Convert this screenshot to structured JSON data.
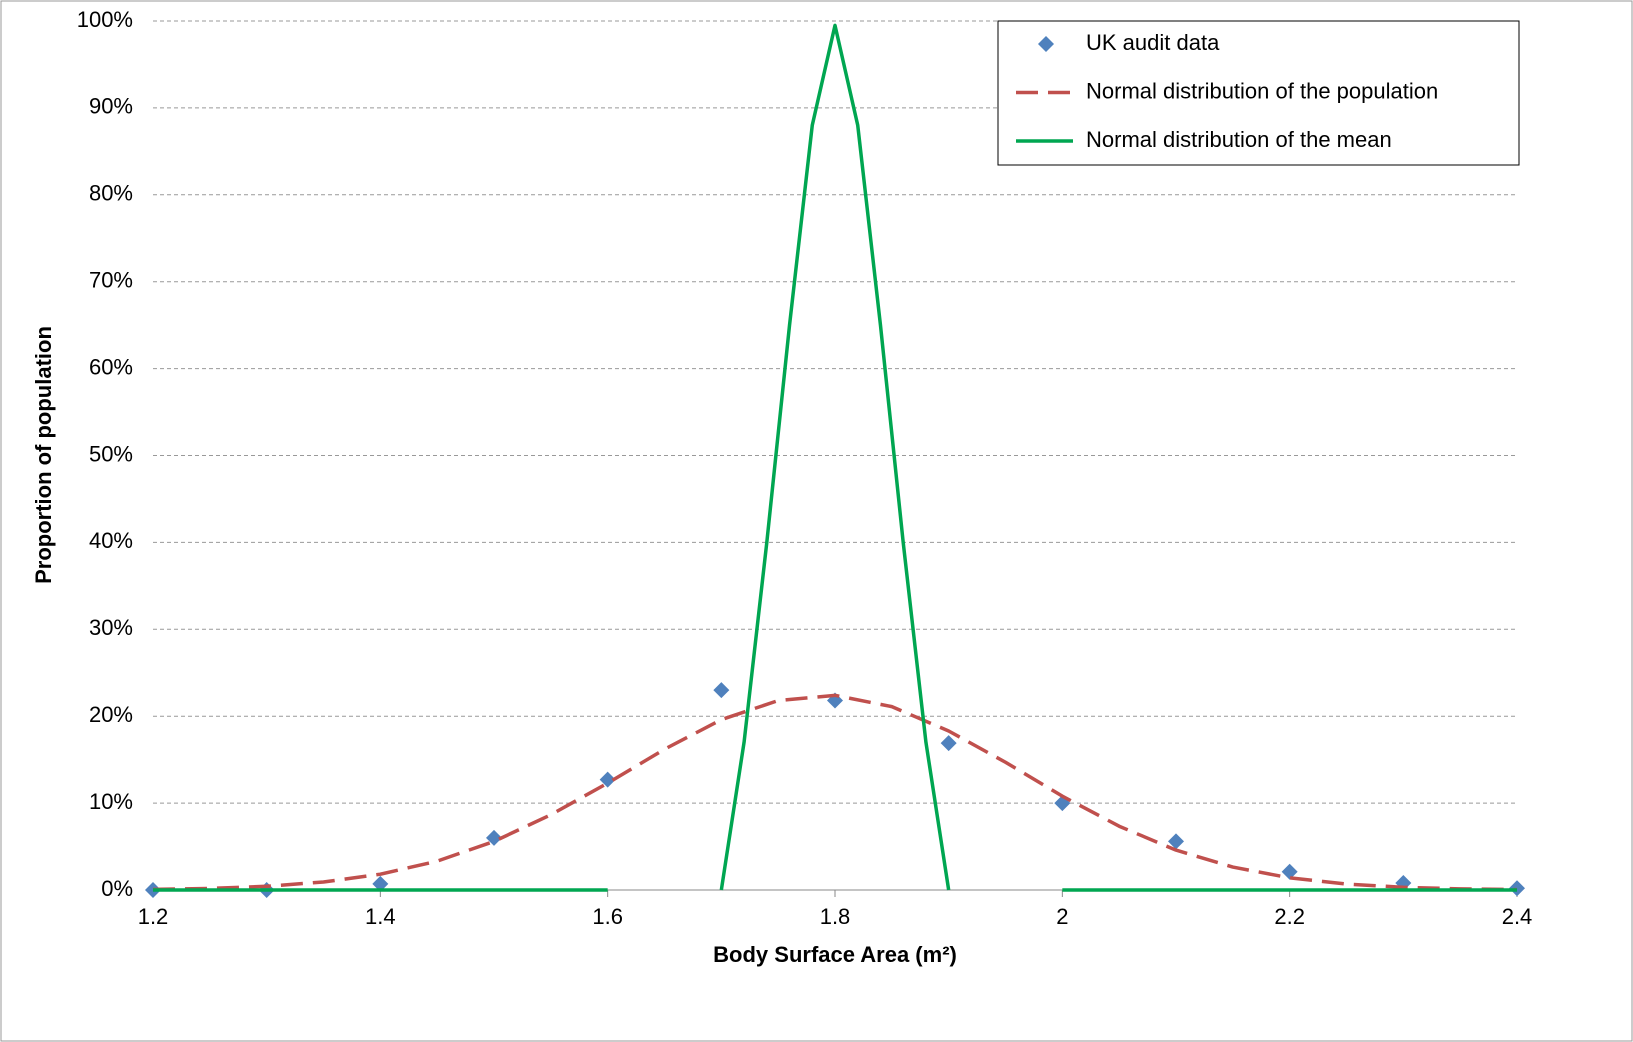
{
  "chart_data": {
    "type": "scatter",
    "x_label": "Body Surface Area (m²)",
    "y_label": "Proportion of population",
    "xlim": [
      1.2,
      2.4
    ],
    "xticks": [
      1.2,
      1.4,
      1.6,
      1.8,
      2,
      2.2,
      2.4
    ],
    "ylim": [
      0,
      100
    ],
    "yticks": [
      {
        "value": 0,
        "label": "0%"
      },
      {
        "value": 10,
        "label": "10%"
      },
      {
        "value": 20,
        "label": "20%"
      },
      {
        "value": 30,
        "label": "30%"
      },
      {
        "value": 40,
        "label": "40%"
      },
      {
        "value": 50,
        "label": "50%"
      },
      {
        "value": 60,
        "label": "60%"
      },
      {
        "value": 70,
        "label": "70%"
      },
      {
        "value": 80,
        "label": "80%"
      },
      {
        "value": 90,
        "label": "90%"
      },
      {
        "value": 100,
        "label": "100%"
      }
    ],
    "grid": true,
    "legend": "top-right",
    "series": [
      {
        "name": "UK audit data",
        "color": "#4f81bd",
        "style": "markers",
        "x": [
          1.2,
          1.3,
          1.4,
          1.5,
          1.6,
          1.7,
          1.8,
          1.9,
          2.0,
          2.1,
          2.2,
          2.3,
          2.4
        ],
        "values": [
          0,
          0,
          0.7,
          6,
          12.7,
          23,
          21.8,
          16.9,
          10,
          5.6,
          2.1,
          0.8,
          0.2
        ]
      },
      {
        "name": "Normal distribution of the population",
        "color": "#c0504d",
        "style": "dashed",
        "x": [
          1.2,
          1.25,
          1.3,
          1.35,
          1.4,
          1.45,
          1.5,
          1.55,
          1.6,
          1.65,
          1.7,
          1.75,
          1.8,
          1.85,
          1.9,
          1.95,
          2.0,
          2.05,
          2.1,
          2.15,
          2.2,
          2.25,
          2.3,
          2.35,
          2.4
        ],
        "values": [
          0.07,
          0.18,
          0.43,
          0.92,
          1.82,
          3.32,
          5.59,
          8.66,
          12.3,
          16.2,
          19.6,
          21.8,
          22.4,
          21.1,
          18.3,
          14.7,
          10.8,
          7.34,
          4.59,
          2.64,
          1.4,
          0.68,
          0.31,
          0.13,
          0.05
        ]
      },
      {
        "name": "Normal distribution of the mean",
        "color": "#00a651",
        "style": "solid",
        "x": [
          1.2,
          1.3,
          1.4,
          1.5,
          1.6,
          1.65,
          1.7,
          1.72,
          1.74,
          1.76,
          1.78,
          1.8,
          1.82,
          1.84,
          1.86,
          1.88,
          1.9,
          1.95,
          2.0,
          2.1,
          2.2,
          2.3,
          2.4
        ],
        "values": [
          0,
          0,
          0,
          0,
          0,
          null,
          0,
          17,
          40,
          65,
          88,
          99.5,
          88,
          65,
          40,
          17,
          0,
          null,
          0,
          0,
          0,
          0,
          0
        ]
      }
    ]
  }
}
